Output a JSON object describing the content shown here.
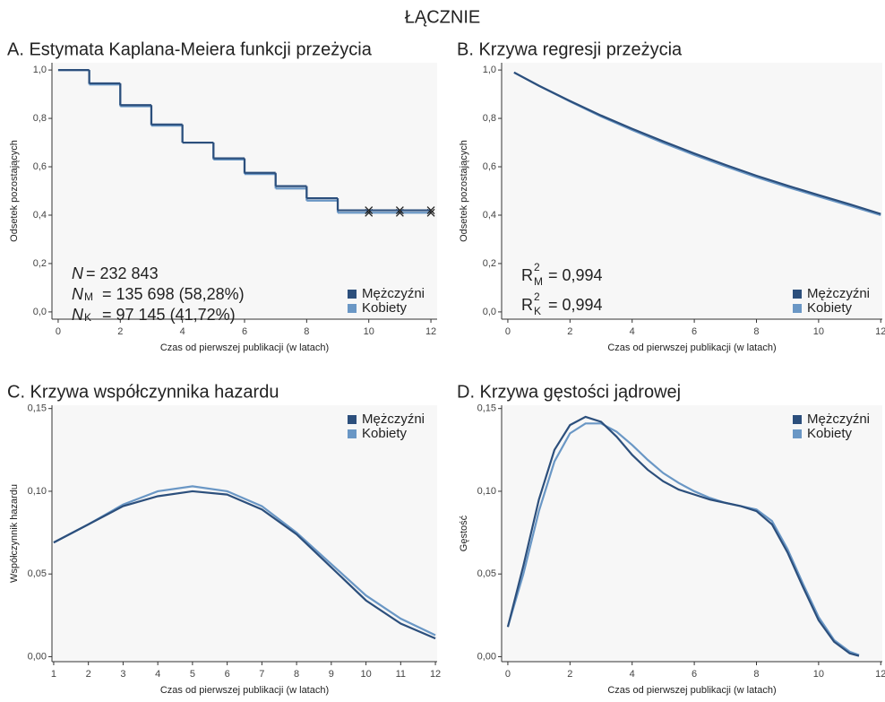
{
  "title": "ŁĄCZNIE",
  "chart_data": [
    {
      "type": "step",
      "title": "A. Estymata Kaplana-Meiera funkcji przeżycia",
      "x_label": "Czas od pierwszej publikacji (w latach)",
      "y_label": "Odsetek pozostających",
      "x": [
        0,
        1,
        2,
        3,
        4,
        5,
        6,
        7,
        8,
        9,
        10,
        11,
        12
      ],
      "series": [
        {
          "name": "Mężczyźni",
          "color": "#2c4f7c",
          "values": [
            1,
            0.945,
            0.855,
            0.775,
            0.7,
            0.635,
            0.575,
            0.52,
            0.47,
            0.42,
            0.42,
            0.42,
            0.42
          ]
        },
        {
          "name": "Kobiety",
          "color": "#6a97c5",
          "values": [
            1,
            0.94,
            0.85,
            0.77,
            0.7,
            0.63,
            0.57,
            0.51,
            0.46,
            0.41,
            0.41,
            0.41,
            0.41
          ]
        }
      ],
      "censor_x": [
        10,
        11,
        12
      ],
      "xlim": [
        -0.2,
        12.2
      ],
      "xticks": [
        0,
        2,
        4,
        6,
        8,
        10,
        12
      ],
      "ylim": [
        -0.03,
        1.03
      ],
      "yticks": [
        {
          "value": 0,
          "label": "0,0"
        },
        {
          "value": 0.2,
          "label": "0,2"
        },
        {
          "value": 0.4,
          "label": "0,4"
        },
        {
          "value": 0.6,
          "label": "0,6"
        },
        {
          "value": 0.8,
          "label": "0,8"
        },
        {
          "value": 1,
          "label": "1,0"
        }
      ],
      "legend": "bottom-right",
      "annotations": [
        {
          "symbol": "N",
          "text": "= 232 843"
        },
        {
          "symbol": "N",
          "sub": "M",
          "text": "= 135 698 (58,28%)"
        },
        {
          "symbol": "N",
          "sub": "K",
          "text": "= 97 145 (41,72%)"
        }
      ]
    },
    {
      "type": "line",
      "title": "B. Krzywa regresji przeżycia",
      "x_label": "Czas od pierwszej publikacji (w latach)",
      "y_label": "Odsetek pozostających",
      "x": [
        0.2,
        1,
        2,
        3,
        4,
        5,
        6,
        7,
        8,
        9,
        10,
        11,
        12
      ],
      "series": [
        {
          "name": "Mężczyźni",
          "color": "#2c4f7c",
          "values": [
            0.99,
            0.935,
            0.872,
            0.812,
            0.757,
            0.705,
            0.655,
            0.608,
            0.563,
            0.522,
            0.483,
            0.445,
            0.405
          ]
        },
        {
          "name": "Kobiety",
          "color": "#6a97c5",
          "values": [
            0.99,
            0.935,
            0.87,
            0.808,
            0.752,
            0.699,
            0.649,
            0.602,
            0.557,
            0.516,
            0.477,
            0.439,
            0.4
          ]
        }
      ],
      "xlim": [
        -0.2,
        12.05
      ],
      "xticks": [
        0,
        2,
        4,
        6,
        8,
        10,
        12
      ],
      "ylim": [
        -0.03,
        1.03
      ],
      "yticks": [
        {
          "value": 0,
          "label": "0,0"
        },
        {
          "value": 0.2,
          "label": "0,2"
        },
        {
          "value": 0.4,
          "label": "0,4"
        },
        {
          "value": 0.6,
          "label": "0,6"
        },
        {
          "value": 0.8,
          "label": "0,8"
        },
        {
          "value": 1,
          "label": "1,0"
        }
      ],
      "legend": "bottom-right",
      "annotations": [
        {
          "symbol": "R",
          "sup": "2",
          "sub": "M",
          "text": "= 0,994"
        },
        {
          "symbol": "R",
          "sup": "2",
          "sub": "K",
          "text": "= 0,994"
        }
      ]
    },
    {
      "type": "line",
      "title": "C. Krzywa współczynnika hazardu",
      "x_label": "Czas od pierwszej publikacji (w latach)",
      "y_label": "Współczynnik hazardu",
      "x": [
        1,
        2,
        3,
        4,
        5,
        6,
        7,
        8,
        9,
        10,
        11,
        12
      ],
      "series": [
        {
          "name": "Mężczyźni",
          "color": "#2c4f7c",
          "values": [
            0.069,
            0.08,
            0.091,
            0.097,
            0.1,
            0.098,
            0.089,
            0.074,
            0.054,
            0.034,
            0.02,
            0.011
          ]
        },
        {
          "name": "Kobiety",
          "color": "#6a97c5",
          "values": [
            0.069,
            0.08,
            0.092,
            0.1,
            0.103,
            0.1,
            0.091,
            0.075,
            0.056,
            0.037,
            0.023,
            0.013
          ]
        }
      ],
      "xlim": [
        0.95,
        12.05
      ],
      "xticks": [
        1,
        2,
        3,
        4,
        5,
        6,
        7,
        8,
        9,
        10,
        11,
        12
      ],
      "ylim": [
        -0.003,
        0.152
      ],
      "yticks": [
        {
          "value": 0,
          "label": "0,00"
        },
        {
          "value": 0.05,
          "label": "0,05"
        },
        {
          "value": 0.1,
          "label": "0,10"
        },
        {
          "value": 0.15,
          "label": "0,15"
        }
      ],
      "legend": "top-right"
    },
    {
      "type": "line",
      "title": "D. Krzywa gęstości jądrowej",
      "x_label": "Czas od pierwszej publikacji (w latach)",
      "y_label": "Gęstość",
      "x": [
        0,
        0.5,
        1,
        1.5,
        2,
        2.5,
        3,
        3.5,
        4,
        4.5,
        5,
        5.5,
        6,
        6.5,
        7,
        7.5,
        8,
        8.5,
        9,
        9.5,
        10,
        10.5,
        11,
        11.3
      ],
      "series": [
        {
          "name": "Mężczyźni",
          "color": "#2c4f7c",
          "values": [
            0.018,
            0.055,
            0.095,
            0.125,
            0.14,
            0.145,
            0.142,
            0.133,
            0.122,
            0.113,
            0.106,
            0.101,
            0.098,
            0.095,
            0.093,
            0.091,
            0.088,
            0.08,
            0.063,
            0.042,
            0.022,
            0.009,
            0.002,
            0.0005
          ]
        },
        {
          "name": "Kobiety",
          "color": "#6a97c5",
          "values": [
            0.018,
            0.05,
            0.088,
            0.118,
            0.135,
            0.141,
            0.141,
            0.136,
            0.128,
            0.119,
            0.111,
            0.105,
            0.1,
            0.096,
            0.093,
            0.091,
            0.089,
            0.082,
            0.065,
            0.044,
            0.024,
            0.01,
            0.003,
            0.001
          ]
        }
      ],
      "xlim": [
        -0.2,
        12.05
      ],
      "xticks": [
        0,
        2,
        4,
        6,
        8,
        10,
        12
      ],
      "ylim": [
        -0.003,
        0.152
      ],
      "yticks": [
        {
          "value": 0,
          "label": "0,00"
        },
        {
          "value": 0.05,
          "label": "0,05"
        },
        {
          "value": 0.1,
          "label": "0,10"
        },
        {
          "value": 0.15,
          "label": "0,15"
        }
      ],
      "legend": "top-right"
    }
  ]
}
